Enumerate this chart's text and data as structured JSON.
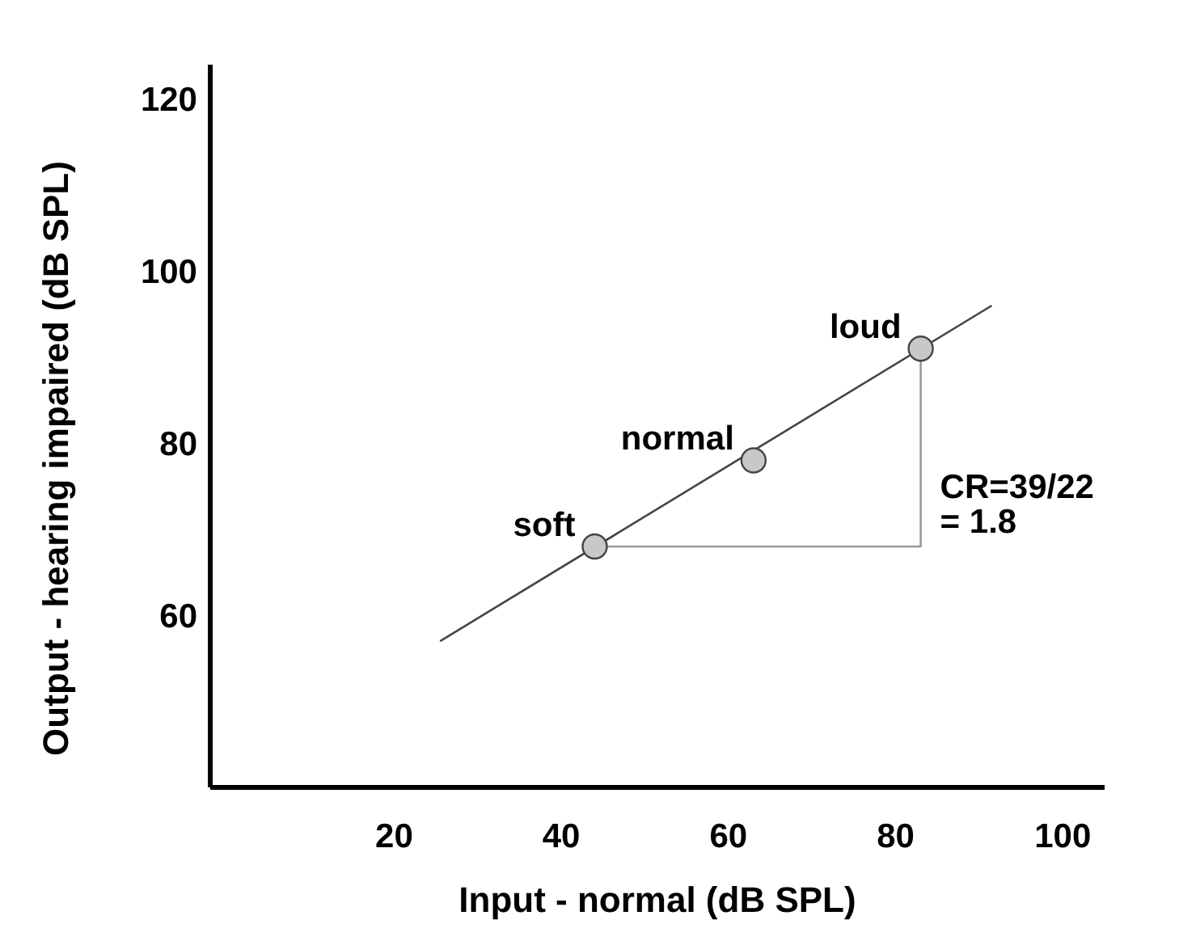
{
  "chart_data": {
    "type": "scatter",
    "xlabel": "Input - normal (dB SPL)",
    "ylabel": "Output - hearing impaired (dB SPL)",
    "xlim": [
      -2,
      105
    ],
    "ylim": [
      40,
      124
    ],
    "xticks": [
      20,
      40,
      60,
      80,
      100
    ],
    "yticks": [
      60,
      80,
      100,
      120
    ],
    "grid": false,
    "series": [
      {
        "type": "line",
        "color": "#444444",
        "x": [
          25.5,
          91.5
        ],
        "values": [
          57,
          96
        ],
        "marker": "none"
      },
      {
        "type": "line",
        "color": "#999999",
        "x": [
          44,
          83,
          83
        ],
        "values": [
          68,
          68,
          91
        ],
        "marker": "none"
      },
      {
        "type": "scatter",
        "color": "#c8c8c8",
        "x": [
          44,
          63,
          83
        ],
        "values": [
          68,
          78,
          91
        ],
        "marker": "circle"
      }
    ],
    "annotations": [
      {
        "text": "soft",
        "x": 44,
        "y": 68
      },
      {
        "text": "normal",
        "x": 63,
        "y": 78
      },
      {
        "text": "loud",
        "x": 83,
        "y": 91
      },
      {
        "text": "CR=39/22",
        "x": 83,
        "y": 75
      },
      {
        "text": "= 1.8",
        "x": 83,
        "y": 71
      }
    ]
  }
}
